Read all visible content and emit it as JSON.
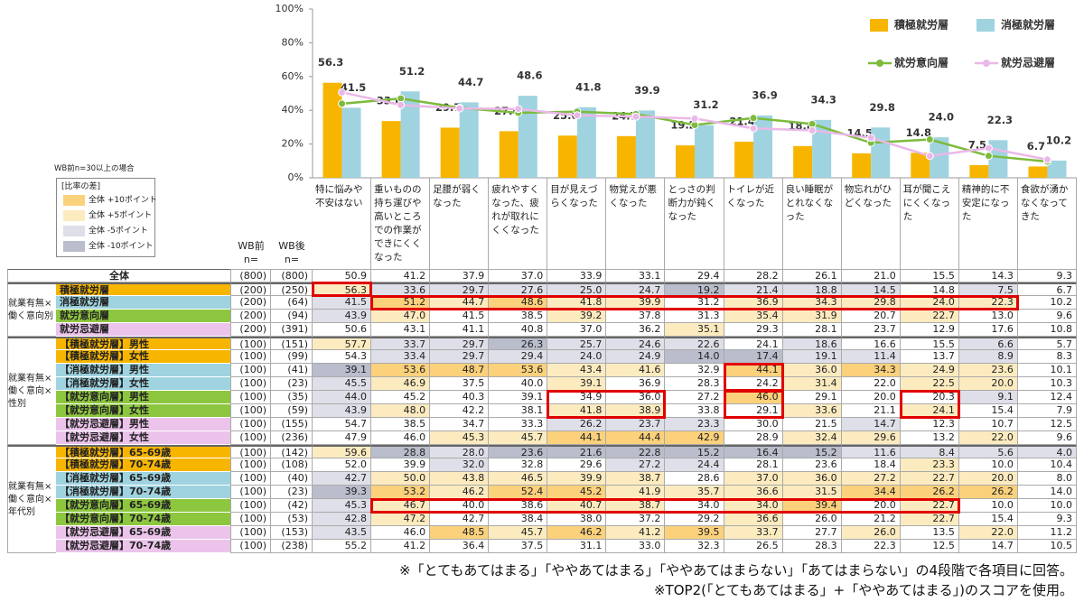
{
  "chart_data": {
    "type": "bar",
    "categories": [
      "特に悩みや不安はない",
      "重いものの持ち運びや高いところでの作業ができにくくなった",
      "足腰が弱くなった",
      "疲れやすくなった、疲れが取れにくくなった",
      "目が見えづらくなった",
      "物覚えが悪くなった",
      "とっさの判断力が鈍くなった",
      "トイレが近くなった",
      "良い睡眠がとれなくなった",
      "物忘れがひどくなった",
      "耳が聞こえにくくなった",
      "精神的に不安定になった",
      "食欲が湧かなくなってきた"
    ],
    "series": [
      {
        "name": "積極就労層",
        "color": "#f7b500",
        "values": [
          56.3,
          33.6,
          29.7,
          27.6,
          25.0,
          24.7,
          19.2,
          21.4,
          18.8,
          14.5,
          14.8,
          7.5,
          6.7
        ],
        "value_labels": [
          "56.3",
          "33.6",
          "29.7",
          "27.6",
          "25.0",
          "24.7",
          "19.2",
          "21.4",
          "18.8",
          "14.5",
          "14.8",
          "7.5",
          "6.7"
        ]
      },
      {
        "name": "消極就労層",
        "color": "#9fd3e0",
        "values": [
          41.5,
          51.2,
          44.7,
          48.6,
          41.8,
          39.9,
          31.2,
          36.9,
          34.3,
          29.8,
          24.0,
          22.3,
          10.2
        ],
        "value_labels": [
          "41.5",
          "51.2",
          "44.7",
          "48.6",
          "41.8",
          "39.9",
          "31.2",
          "36.9",
          "34.3",
          "29.8",
          "24.0",
          "22.3",
          "10.2"
        ]
      },
      {
        "name": "就労意向層",
        "type": "line",
        "color": "#7dbb3c",
        "values": [
          43.9,
          47.0,
          41.5,
          38.5,
          39.2,
          37.8,
          31.3,
          35.4,
          31.9,
          20.7,
          22.7,
          13.0,
          9.6
        ]
      },
      {
        "name": "就労忌避層",
        "type": "line",
        "color": "#eab8e8",
        "values": [
          50.6,
          43.1,
          41.1,
          40.8,
          37.0,
          36.2,
          35.1,
          29.3,
          28.1,
          23.7,
          12.9,
          17.6,
          10.8
        ]
      }
    ],
    "ylim": [
      0,
      100
    ],
    "yticks": [
      {
        "value": 0,
        "label": "0%"
      },
      {
        "value": 20,
        "label": "20%"
      },
      {
        "value": 40,
        "label": "40%"
      },
      {
        "value": 60,
        "label": "60%"
      },
      {
        "value": 80,
        "label": "80%"
      },
      {
        "value": 100,
        "label": "100%"
      }
    ],
    "grid": false,
    "legend": "top-right"
  },
  "table": {
    "note": "WB前n=30以上の場合",
    "legend": {
      "title": "[比率の差]",
      "items": [
        {
          "label": "全体 +10ポイント",
          "value": 10,
          "color": "#fbd17c"
        },
        {
          "label": "全体 +5ポイント",
          "value": 5,
          "color": "#fdebc0"
        },
        {
          "label": "全体 -5ポイント",
          "value": -5,
          "color": "#dedfe8"
        },
        {
          "label": "全体 -10ポイント",
          "value": -10,
          "color": "#b9bdcc"
        }
      ]
    },
    "columns": [
      {
        "label": "WB前",
        "unit": "n="
      },
      {
        "label": "WB後",
        "unit": "n="
      }
    ],
    "total": {
      "label": "全体",
      "n_before": "(800)",
      "n_after": "(800)",
      "values": [
        "50.9",
        "41.2",
        "37.9",
        "37.0",
        "33.9",
        "33.1",
        "29.4",
        "28.2",
        "26.1",
        "21.0",
        "15.5",
        "14.3",
        "9.3"
      ]
    },
    "groups": [
      {
        "label": "就業有無×働く意向別",
        "rows": [
          {
            "label": "積極就労層",
            "color": "#f7b500",
            "n_before": "(200)",
            "n_after": "(250)",
            "values": [
              "56.3",
              "33.6",
              "29.7",
              "27.6",
              "25.0",
              "24.7",
              "19.2",
              "21.4",
              "18.8",
              "14.5",
              "14.8",
              "7.5",
              "6.7"
            ]
          },
          {
            "label": "消極就労層",
            "color": "#9fd3e0",
            "n_before": "(200)",
            "n_after": "(64)",
            "values": [
              "41.5",
              "51.2",
              "44.7",
              "48.6",
              "41.8",
              "39.9",
              "31.2",
              "36.9",
              "34.3",
              "29.8",
              "24.0",
              "22.3",
              "10.2"
            ]
          },
          {
            "label": "就労意向層",
            "color": "#8dc63f",
            "n_before": "(200)",
            "n_after": "(94)",
            "values": [
              "43.9",
              "47.0",
              "41.5",
              "38.5",
              "39.2",
              "37.8",
              "31.3",
              "35.4",
              "31.9",
              "20.7",
              "22.7",
              "13.0",
              "9.6"
            ]
          },
          {
            "label": "就労忌避層",
            "color": "#ebc3eb",
            "n_before": "(200)",
            "n_after": "(391)",
            "values": [
              "50.6",
              "43.1",
              "41.1",
              "40.8",
              "37.0",
              "36.2",
              "35.1",
              "29.3",
              "28.1",
              "23.7",
              "12.9",
              "17.6",
              "10.8"
            ]
          }
        ]
      },
      {
        "label": "就業有無×働く意向×性別",
        "rows": [
          {
            "label": "【積極就労層】男性",
            "color": "#f7b500",
            "n_before": "(100)",
            "n_after": "(151)",
            "values": [
              "57.7",
              "33.7",
              "29.7",
              "26.3",
              "25.7",
              "24.6",
              "22.6",
              "24.1",
              "18.6",
              "16.6",
              "15.5",
              "6.6",
              "5.7"
            ]
          },
          {
            "label": "【積極就労層】女性",
            "color": "#f7b500",
            "n_before": "(100)",
            "n_after": "(99)",
            "values": [
              "54.3",
              "33.4",
              "29.7",
              "29.4",
              "24.0",
              "24.9",
              "14.0",
              "17.4",
              "19.1",
              "11.4",
              "13.7",
              "8.9",
              "8.3"
            ]
          },
          {
            "label": "【消極就労層】男性",
            "color": "#9fd3e0",
            "n_before": "(100)",
            "n_after": "(41)",
            "values": [
              "39.1",
              "53.6",
              "48.7",
              "53.6",
              "43.4",
              "41.6",
              "32.9",
              "44.1",
              "36.0",
              "34.3",
              "24.9",
              "23.6",
              "10.1"
            ]
          },
          {
            "label": "【消極就労層】女性",
            "color": "#9fd3e0",
            "n_before": "(100)",
            "n_after": "(23)",
            "values": [
              "45.5",
              "46.9",
              "37.5",
              "40.0",
              "39.1",
              "36.9",
              "28.3",
              "24.2",
              "31.4",
              "22.0",
              "22.5",
              "20.0",
              "10.3"
            ]
          },
          {
            "label": "【就労意向層】男性",
            "color": "#8dc63f",
            "n_before": "(100)",
            "n_after": "(35)",
            "values": [
              "44.0",
              "45.2",
              "40.3",
              "39.1",
              "34.9",
              "36.0",
              "27.2",
              "46.0",
              "29.1",
              "20.0",
              "20.3",
              "9.1",
              "12.4"
            ]
          },
          {
            "label": "【就労意向層】女性",
            "color": "#8dc63f",
            "n_before": "(100)",
            "n_after": "(59)",
            "values": [
              "43.9",
              "48.0",
              "42.2",
              "38.1",
              "41.8",
              "38.9",
              "33.8",
              "29.1",
              "33.6",
              "21.1",
              "24.1",
              "15.4",
              "7.9"
            ]
          },
          {
            "label": "【就労忌避層】男性",
            "color": "#ebc3eb",
            "n_before": "(100)",
            "n_after": "(155)",
            "values": [
              "54.7",
              "38.5",
              "34.7",
              "33.3",
              "26.2",
              "23.7",
              "23.3",
              "30.0",
              "21.5",
              "14.7",
              "12.3",
              "10.7",
              "12.5"
            ]
          },
          {
            "label": "【就労忌避層】女性",
            "color": "#ebc3eb",
            "n_before": "(100)",
            "n_after": "(236)",
            "values": [
              "47.9",
              "46.0",
              "45.3",
              "45.7",
              "44.1",
              "44.4",
              "42.9",
              "28.9",
              "32.4",
              "29.6",
              "13.2",
              "22.0",
              "9.6"
            ]
          }
        ]
      },
      {
        "label": "就業有無×働く意向×年代別",
        "rows": [
          {
            "label": "【積極就労層】65-69歳",
            "color": "#f7b500",
            "n_before": "(100)",
            "n_after": "(142)",
            "values": [
              "59.6",
              "28.8",
              "28.0",
              "23.6",
              "21.6",
              "22.8",
              "15.2",
              "16.4",
              "15.2",
              "11.6",
              "8.4",
              "5.6",
              "4.0"
            ]
          },
          {
            "label": "【積極就労層】70-74歳",
            "color": "#f7b500",
            "n_before": "(100)",
            "n_after": "(108)",
            "values": [
              "52.0",
              "39.9",
              "32.0",
              "32.8",
              "29.6",
              "27.2",
              "24.4",
              "28.1",
              "23.6",
              "18.4",
              "23.3",
              "10.0",
              "10.4"
            ]
          },
          {
            "label": "【消極就労層】65-69歳",
            "color": "#9fd3e0",
            "n_before": "(100)",
            "n_after": "(40)",
            "values": [
              "42.7",
              "50.0",
              "43.8",
              "46.5",
              "39.9",
              "38.7",
              "28.6",
              "37.0",
              "36.0",
              "27.2",
              "22.7",
              "20.0",
              "8.0"
            ]
          },
          {
            "label": "【消極就労層】70-74歳",
            "color": "#9fd3e0",
            "n_before": "(100)",
            "n_after": "(23)",
            "values": [
              "39.3",
              "53.2",
              "46.2",
              "52.4",
              "45.2",
              "41.9",
              "35.7",
              "36.6",
              "31.5",
              "34.4",
              "26.2",
              "26.2",
              "14.0"
            ]
          },
          {
            "label": "【就労意向層】65-69歳",
            "color": "#8dc63f",
            "n_before": "(100)",
            "n_after": "(42)",
            "values": [
              "45.3",
              "46.7",
              "40.0",
              "38.6",
              "40.7",
              "38.7",
              "34.0",
              "34.0",
              "39.4",
              "20.0",
              "22.7",
              "10.0",
              "10.0"
            ]
          },
          {
            "label": "【就労意向層】70-74歳",
            "color": "#8dc63f",
            "n_before": "(100)",
            "n_after": "(53)",
            "values": [
              "42.8",
              "47.2",
              "42.7",
              "38.4",
              "38.0",
              "37.2",
              "29.2",
              "36.6",
              "26.0",
              "21.2",
              "22.7",
              "15.4",
              "9.3"
            ]
          },
          {
            "label": "【就労忌避層】65-69歳",
            "color": "#ebc3eb",
            "n_before": "(100)",
            "n_after": "(153)",
            "values": [
              "43.5",
              "46.0",
              "48.5",
              "45.7",
              "46.2",
              "41.2",
              "39.5",
              "33.7",
              "27.7",
              "26.0",
              "13.5",
              "22.0",
              "11.2"
            ]
          },
          {
            "label": "【就労忌避層】70-74歳",
            "color": "#ebc3eb",
            "n_before": "(100)",
            "n_after": "(238)",
            "values": [
              "55.2",
              "41.2",
              "36.4",
              "37.5",
              "31.1",
              "33.0",
              "32.3",
              "26.5",
              "28.3",
              "22.3",
              "12.5",
              "14.7",
              "10.5"
            ]
          }
        ]
      }
    ]
  },
  "footnotes": [
    "※「とてもあてはまる」「ややあてはまる」「ややあてはまらない」「あてはまらない」の4段階で各項目に回答。",
    "※TOP2(「とてもあてはまる」+「ややあてはまる」)のスコアを使用。"
  ]
}
